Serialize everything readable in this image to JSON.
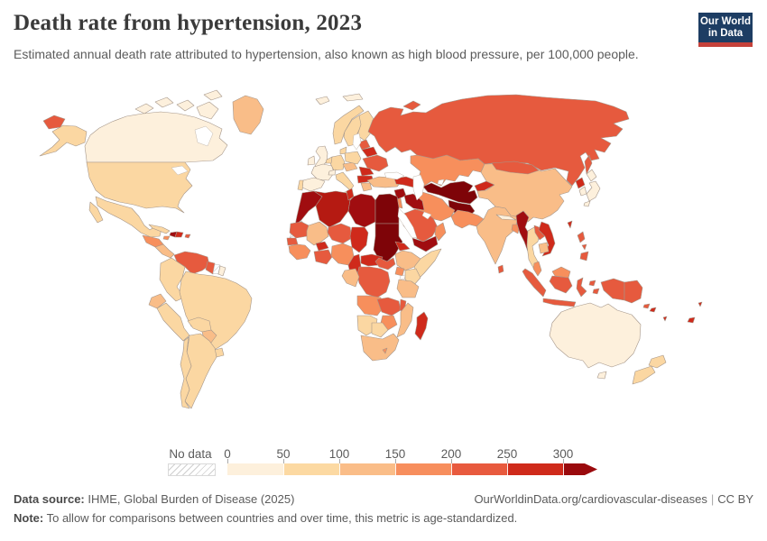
{
  "header": {
    "title": "Death rate from hypertension, 2023",
    "subtitle": "Estimated annual death rate attributed to hypertension, also known as high blood pressure, per 100,000 people.",
    "logo": {
      "line1": "Our World",
      "line2": "in Data",
      "bg_color": "#1d3d63",
      "accent_color": "#c5413a"
    }
  },
  "legend": {
    "no_data_label": "No data",
    "tick_labels": [
      "0",
      "50",
      "100",
      "150",
      "200",
      "250",
      "300"
    ],
    "bin_colors": [
      "#fdf0dc",
      "#fcd9a2",
      "#fabd88",
      "#f78e5d",
      "#e85a3e",
      "#cf2a1b",
      "#9a0a0d"
    ]
  },
  "footer": {
    "source_label": "Data source:",
    "source_text": " IHME, Global Burden of Disease (2025)",
    "link": "OurWorldinData.org/cardiovascular-diseases",
    "separator": "|",
    "license": "CC BY",
    "note_label": "Note:",
    "note_text": " To allow for comparisons between countries and over time, this metric is age-standardized."
  },
  "map": {
    "ocean_color": "#ffffff",
    "border_color": "#a5968a",
    "no_data_border_color": "#bbbbbb",
    "countries": [
      {
        "id": "canada",
        "color": "#fdf0dc"
      },
      {
        "id": "greenland",
        "color": "#f9bd88"
      },
      {
        "id": "united-states",
        "color": "#fbd7a2"
      },
      {
        "id": "mexico",
        "color": "#fbd7a2"
      },
      {
        "id": "guatemala-honduras",
        "color": "#f78f5c"
      },
      {
        "id": "central-america",
        "color": "#f9bd88"
      },
      {
        "id": "cuba",
        "color": "#fbd7a2"
      },
      {
        "id": "haiti",
        "color": "#a00d10"
      },
      {
        "id": "dominican-republic",
        "color": "#cf2a1b"
      },
      {
        "id": "jamaica",
        "color": "#f78f5c"
      },
      {
        "id": "puerto-rico",
        "color": "#e65a3e"
      },
      {
        "id": "venezuela",
        "color": "#e65a3e"
      },
      {
        "id": "guyana",
        "color": "#e65a3e"
      },
      {
        "id": "suriname",
        "no_data": true
      },
      {
        "id": "french-guiana",
        "color": "#fdf0dc"
      },
      {
        "id": "colombia",
        "color": "#fbd7a2"
      },
      {
        "id": "ecuador",
        "color": "#f9bd88"
      },
      {
        "id": "peru",
        "color": "#fbd7a2"
      },
      {
        "id": "brazil",
        "color": "#fbd7a2"
      },
      {
        "id": "bolivia",
        "color": "#fbd7a2"
      },
      {
        "id": "paraguay",
        "color": "#f9bd88"
      },
      {
        "id": "uruguay",
        "color": "#fbd7a2"
      },
      {
        "id": "argentina",
        "color": "#fbd7a2"
      },
      {
        "id": "chile",
        "color": "#fbd7a2"
      },
      {
        "id": "iceland",
        "color": "#fdf0dc"
      },
      {
        "id": "svalbard",
        "color": "#fdf0dc"
      },
      {
        "id": "united-kingdom",
        "color": "#fdf0dc"
      },
      {
        "id": "ireland",
        "color": "#fdf0dc"
      },
      {
        "id": "norway",
        "color": "#fbd7a2"
      },
      {
        "id": "sweden",
        "color": "#fbd7a2"
      },
      {
        "id": "finland",
        "color": "#fbd7a2"
      },
      {
        "id": "denmark",
        "color": "#fbd7a2"
      },
      {
        "id": "france",
        "color": "#fdf0dc"
      },
      {
        "id": "spain",
        "color": "#fdf0dc"
      },
      {
        "id": "portugal",
        "color": "#fbd7a2"
      },
      {
        "id": "germany",
        "color": "#fbd7a2"
      },
      {
        "id": "benelux",
        "color": "#fbd7a2"
      },
      {
        "id": "switzerland",
        "color": "#fdf0dc"
      },
      {
        "id": "italy",
        "color": "#fbd7a2"
      },
      {
        "id": "austria-czechia",
        "color": "#f9bd88"
      },
      {
        "id": "poland",
        "color": "#fbd7a2"
      },
      {
        "id": "baltics",
        "color": "#e65a3e"
      },
      {
        "id": "belarus",
        "color": "#cf2a1b"
      },
      {
        "id": "ukraine",
        "color": "#e65a3e"
      },
      {
        "id": "romania",
        "color": "#cf2a1b"
      },
      {
        "id": "serbia-bulgaria",
        "color": "#cf2a1b"
      },
      {
        "id": "greece",
        "color": "#f9bd88"
      },
      {
        "id": "turkey",
        "color": "#f9bd88"
      },
      {
        "id": "caucasus",
        "color": "#cf2a1b"
      },
      {
        "id": "russia",
        "color": "#e65a3e"
      },
      {
        "id": "kazakhstan",
        "color": "#f78f5c"
      },
      {
        "id": "uzbekistan-turkmenistan",
        "color": "#7e0408"
      },
      {
        "id": "afghanistan",
        "color": "#7e0408"
      },
      {
        "id": "kyrgyzstan",
        "color": "#cf2a1b"
      },
      {
        "id": "china",
        "color": "#f9bd88"
      },
      {
        "id": "mongolia",
        "color": "#e65a3e"
      },
      {
        "id": "india",
        "color": "#f9bd88"
      },
      {
        "id": "nepal",
        "color": "#fdf0dc"
      },
      {
        "id": "bangladesh",
        "color": "#f78f5c"
      },
      {
        "id": "pakistan",
        "color": "#f78f5c"
      },
      {
        "id": "iran",
        "color": "#f78f5c"
      },
      {
        "id": "sri-lanka",
        "color": "#e65a3e"
      },
      {
        "id": "myanmar",
        "color": "#a00d10"
      },
      {
        "id": "thailand",
        "color": "#fbd7a2"
      },
      {
        "id": "laos",
        "color": "#e65a3e"
      },
      {
        "id": "vietnam",
        "color": "#cf2a1b"
      },
      {
        "id": "cambodia",
        "color": "#f9bd88"
      },
      {
        "id": "north-korea",
        "color": "#cf2a1b"
      },
      {
        "id": "south-korea",
        "color": "#fdf0dc"
      },
      {
        "id": "japan",
        "color": "#fdf0dc"
      },
      {
        "id": "taiwan",
        "color": "#cf2a1b"
      },
      {
        "id": "philippines",
        "color": "#e65a3e"
      },
      {
        "id": "malaysia",
        "color": "#f78f5c"
      },
      {
        "id": "indonesia",
        "color": "#e65a3e"
      },
      {
        "id": "papua-new-guinea",
        "color": "#e65a3e"
      },
      {
        "id": "pacific-islands",
        "color": "#cf2a1b"
      },
      {
        "id": "australia",
        "color": "#fdf0dc"
      },
      {
        "id": "new-zealand",
        "color": "#fbd7a2"
      },
      {
        "id": "syria",
        "color": "#a00d10"
      },
      {
        "id": "iraq",
        "color": "#a00d10"
      },
      {
        "id": "jordan-israel",
        "color": "#f78f5c"
      },
      {
        "id": "saudi-arabia",
        "color": "#e65a3e"
      },
      {
        "id": "yemen",
        "color": "#a00d10"
      },
      {
        "id": "oman",
        "color": "#f78f5c"
      },
      {
        "id": "morocco",
        "color": "#a00d10"
      },
      {
        "id": "western-sahara",
        "no_data": true
      },
      {
        "id": "algeria",
        "color": "#b51a12"
      },
      {
        "id": "tunisia",
        "color": "#cf2a1b"
      },
      {
        "id": "libya",
        "color": "#a00d10"
      },
      {
        "id": "egypt",
        "color": "#7e0408"
      },
      {
        "id": "sudan",
        "color": "#7e0408"
      },
      {
        "id": "mauritania",
        "color": "#e65a3e"
      },
      {
        "id": "mali",
        "color": "#f9bd88"
      },
      {
        "id": "niger",
        "color": "#e65a3e"
      },
      {
        "id": "chad",
        "color": "#cf2a1b"
      },
      {
        "id": "senegal",
        "color": "#e65a3e"
      },
      {
        "id": "guinea-coast",
        "color": "#f78f5c"
      },
      {
        "id": "burkina-faso",
        "color": "#cf2a1b"
      },
      {
        "id": "ghana-strip",
        "color": "#e65a3e"
      },
      {
        "id": "nigeria",
        "color": "#f78f5c"
      },
      {
        "id": "cameroon",
        "color": "#cf2a1b"
      },
      {
        "id": "central-african-republic",
        "color": "#cf2a1b"
      },
      {
        "id": "south-sudan",
        "color": "#e65a3e"
      },
      {
        "id": "eritrea",
        "color": "#cf2a1b"
      },
      {
        "id": "ethiopia",
        "color": "#f9bd88"
      },
      {
        "id": "somalia",
        "color": "#fbd7a2"
      },
      {
        "id": "kenya",
        "color": "#fbd7a2"
      },
      {
        "id": "uganda",
        "color": "#f78f5c"
      },
      {
        "id": "tanzania",
        "color": "#f9bd88"
      },
      {
        "id": "dr-congo",
        "color": "#e65a3e"
      },
      {
        "id": "congo-gabon",
        "color": "#f9bd88"
      },
      {
        "id": "angola",
        "color": "#f78f5c"
      },
      {
        "id": "zambia",
        "color": "#e65a3e"
      },
      {
        "id": "malawi",
        "color": "#e65a3e"
      },
      {
        "id": "mozambique",
        "color": "#f9bd88"
      },
      {
        "id": "zimbabwe",
        "color": "#f78f5c"
      },
      {
        "id": "namibia",
        "color": "#fbd7a2"
      },
      {
        "id": "botswana",
        "color": "#fbd7a2"
      },
      {
        "id": "south-africa",
        "color": "#f9bd88"
      },
      {
        "id": "lesotho",
        "color": "#f78f5c"
      },
      {
        "id": "madagascar",
        "color": "#cf2a1b"
      }
    ]
  },
  "chart_data": {
    "type": "choropleth",
    "title": "Death rate from hypertension, 2023",
    "subtitle": "Estimated annual death rate attributed to hypertension, also known as high blood pressure, per 100,000 people.",
    "unit": "deaths per 100,000 people",
    "year": 2023,
    "legend_position": "bottom",
    "legend_bins": [
      {
        "range": "0-50",
        "color": "#fdf0dc"
      },
      {
        "range": "50-100",
        "color": "#fcd9a2"
      },
      {
        "range": "100-150",
        "color": "#fabd88"
      },
      {
        "range": "150-200",
        "color": "#f78e5d"
      },
      {
        "range": "200-250",
        "color": "#e85a3e"
      },
      {
        "range": "250-300",
        "color": "#cf2a1b"
      },
      {
        "range": "300+",
        "color": "#9a0a0d"
      }
    ],
    "no_data_label": "No data",
    "values": {
      "canada": "0-50",
      "greenland": "100-150",
      "united-states": "50-100",
      "mexico": "50-100",
      "guatemala-honduras": "150-200",
      "central-america": "100-150",
      "cuba": "50-100",
      "haiti": "300+",
      "dominican-republic": "250-300",
      "jamaica": "150-200",
      "puerto-rico": "200-250",
      "venezuela": "200-250",
      "guyana": "200-250",
      "suriname": "No data",
      "french-guiana": "0-50",
      "colombia": "50-100",
      "ecuador": "100-150",
      "peru": "50-100",
      "brazil": "50-100",
      "bolivia": "50-100",
      "paraguay": "100-150",
      "uruguay": "50-100",
      "argentina": "50-100",
      "chile": "50-100",
      "iceland": "0-50",
      "svalbard": "0-50",
      "united-kingdom": "0-50",
      "ireland": "0-50",
      "norway": "50-100",
      "sweden": "50-100",
      "finland": "50-100",
      "denmark": "50-100",
      "france": "0-50",
      "spain": "0-50",
      "portugal": "50-100",
      "germany": "50-100",
      "benelux": "50-100",
      "switzerland": "0-50",
      "italy": "50-100",
      "austria-czechia": "100-150",
      "poland": "50-100",
      "baltics": "200-250",
      "belarus": "250-300",
      "ukraine": "200-250",
      "romania": "250-300",
      "serbia-bulgaria": "250-300",
      "greece": "100-150",
      "turkey": "100-150",
      "caucasus": "250-300",
      "russia": "200-250",
      "kazakhstan": "150-200",
      "uzbekistan-turkmenistan": "300+",
      "afghanistan": "300+",
      "kyrgyzstan": "250-300",
      "china": "100-150",
      "mongolia": "200-250",
      "india": "100-150",
      "nepal": "0-50",
      "bangladesh": "150-200",
      "pakistan": "150-200",
      "iran": "150-200",
      "sri-lanka": "200-250",
      "myanmar": "300+",
      "thailand": "50-100",
      "laos": "200-250",
      "vietnam": "250-300",
      "cambodia": "100-150",
      "north-korea": "250-300",
      "south-korea": "0-50",
      "japan": "0-50",
      "taiwan": "250-300",
      "philippines": "200-250",
      "malaysia": "150-200",
      "indonesia": "200-250",
      "papua-new-guinea": "200-250",
      "pacific-islands": "250-300",
      "australia": "0-50",
      "new-zealand": "50-100",
      "syria": "300+",
      "iraq": "300+",
      "jordan-israel": "150-200",
      "saudi-arabia": "200-250",
      "yemen": "300+",
      "oman": "150-200",
      "morocco": "300+",
      "western-sahara": "No data",
      "algeria": "250-300",
      "tunisia": "250-300",
      "libya": "300+",
      "egypt": "300+",
      "sudan": "300+",
      "mauritania": "200-250",
      "mali": "100-150",
      "niger": "200-250",
      "chad": "250-300",
      "senegal": "200-250",
      "guinea-coast": "150-200",
      "burkina-faso": "250-300",
      "ghana-strip": "200-250",
      "nigeria": "150-200",
      "cameroon": "250-300",
      "central-african-republic": "250-300",
      "south-sudan": "200-250",
      "eritrea": "250-300",
      "ethiopia": "100-150",
      "somalia": "50-100",
      "kenya": "50-100",
      "uganda": "150-200",
      "tanzania": "100-150",
      "dr-congo": "200-250",
      "congo-gabon": "100-150",
      "angola": "150-200",
      "zambia": "200-250",
      "malawi": "200-250",
      "mozambique": "100-150",
      "zimbabwe": "150-200",
      "namibia": "50-100",
      "botswana": "50-100",
      "south-africa": "100-150",
      "lesotho": "150-200",
      "madagascar": "250-300"
    }
  }
}
